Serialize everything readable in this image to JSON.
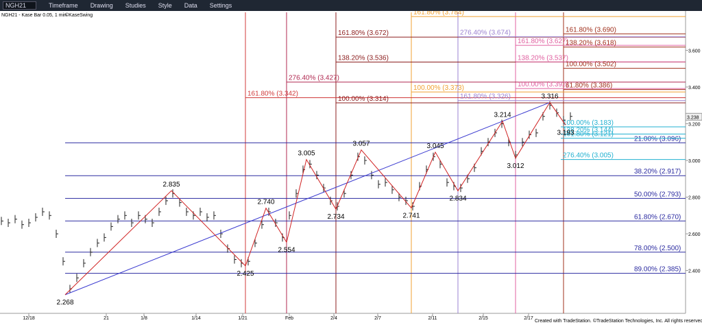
{
  "toolbar": {
    "symbol": "NGH21",
    "menus": [
      "Timeframe",
      "Drawing",
      "Studies",
      "Style",
      "Data",
      "Settings"
    ]
  },
  "chart_data": {
    "type": "price-bars",
    "title": "NGH21 - Kase Bar 0.05, 1 min",
    "study": "©KaseSwing",
    "footer": "Created with TradeStation. ©TradeStation Technologies, Inc. All rights reserved.",
    "categories": [
      "12/18",
      "21",
      "1/8",
      "1/14",
      "1/21",
      "Feb",
      "2/4",
      "2/7",
      "2/11",
      "2/15",
      "2/17"
    ],
    "ylim": [
      2.163,
      3.807
    ],
    "yticks": [
      {
        "value": 3.6,
        "label": "3.600"
      },
      {
        "value": 3.4,
        "label": "3.400"
      },
      {
        "value": 3.2,
        "label": "3.200"
      },
      {
        "value": 3,
        "label": "3.000"
      },
      {
        "value": 2.8,
        "label": "2.800"
      },
      {
        "value": 2.6,
        "label": "2.600"
      },
      {
        "value": 2.4,
        "label": "2.400"
      }
    ],
    "last_price": 3.238,
    "closes": [
      2.67,
      2.66,
      2.68,
      2.65,
      2.66,
      2.69,
      2.72,
      2.7,
      2.6,
      2.45,
      2.3,
      2.36,
      2.44,
      2.5,
      2.55,
      2.58,
      2.64,
      2.68,
      2.7,
      2.66,
      2.7,
      2.68,
      2.66,
      2.72,
      2.78,
      2.82,
      2.77,
      2.72,
      2.7,
      2.72,
      2.69,
      2.7,
      2.6,
      2.52,
      2.46,
      2.44,
      2.45,
      2.55,
      2.65,
      2.72,
      2.66,
      2.58,
      2.7,
      2.82,
      2.95,
      2.98,
      2.92,
      2.85,
      2.78,
      2.75,
      2.82,
      2.92,
      3.02,
      3.0,
      2.92,
      2.87,
      2.88,
      2.84,
      2.8,
      2.78,
      2.75,
      2.86,
      2.95,
      3.02,
      2.98,
      2.88,
      2.86,
      2.85,
      2.9,
      2.96,
      3.05,
      3.1,
      3.15,
      3.2,
      3.1,
      3.03,
      3.1,
      3.14,
      3.15,
      3.24,
      3.3,
      3.26,
      3.22,
      3.24
    ],
    "swings": [
      2.268,
      2.835,
      2.425,
      {
        "value": 2.74,
        "label": "2.740"
      },
      2.554,
      3.005,
      2.734,
      3.057,
      2.741,
      3.045,
      2.834,
      3.214,
      3.012,
      3.316,
      3.193
    ],
    "fib_sets": [
      {
        "color": "#2a2aa0",
        "levels": [
          {
            "label": "21.00% (3.096)",
            "value": 3.096
          },
          {
            "label": "38.20% (2.917)",
            "value": 2.917
          },
          {
            "label": "50.00% (2.793)",
            "value": 2.793
          },
          {
            "label": "61.80% (2.670)",
            "value": 2.67
          },
          {
            "label": "78.00% (2.500)",
            "value": 2.5
          },
          {
            "label": "89.00% (2.385)",
            "value": 2.385
          }
        ]
      },
      {
        "color": "#d03a3a",
        "levels": [
          {
            "label": "161.80% (3.342)",
            "value": 3.342
          }
        ]
      },
      {
        "color": "#b02850",
        "levels": [
          {
            "label": "276.40% (3.427)",
            "value": 3.427
          }
        ]
      },
      {
        "color": "#8b1c1c",
        "levels": [
          {
            "label": "161.80% (3.672)",
            "value": 3.672
          },
          {
            "label": "138.20% (3.536)",
            "value": 3.536
          },
          {
            "label": "100.00% (3.314)",
            "value": 3.314
          }
        ]
      },
      {
        "color": "#f0a030",
        "levels": [
          {
            "label": "161.80% (3.784)",
            "value": 3.784
          },
          {
            "label": "100.00% (3.373)",
            "value": 3.373
          }
        ]
      },
      {
        "color": "#9a80d0",
        "levels": [
          {
            "label": "276.40% (3.674)",
            "value": 3.674
          },
          {
            "label": "161.80% (3.326)",
            "value": 3.326
          }
        ]
      },
      {
        "color": "#e060a0",
        "levels": [
          {
            "label": "161.80% (3.627)",
            "value": 3.627
          },
          {
            "label": "138.20% (3.537)",
            "value": 3.537
          },
          {
            "label": "100.00% (3.392)",
            "value": 3.392
          }
        ]
      },
      {
        "color": "#a0301c",
        "levels": [
          {
            "label": "161.80% (3.690)",
            "value": 3.69
          },
          {
            "label": "138.20% (3.618)",
            "value": 3.618
          },
          {
            "label": "100.00% (3.502)",
            "value": 3.502
          },
          {
            "label": "61.80% (3.386)",
            "value": 3.386
          }
        ]
      },
      {
        "color": "#20b0d0",
        "levels": [
          {
            "label": "100.00% (3.183)",
            "value": 3.183
          },
          {
            "label": "138.20% (3.144)",
            "value": 3.144
          },
          {
            "label": "161.80% (3.121)",
            "value": 3.121
          },
          {
            "label": "276.40% (3.005)",
            "value": 3.005
          }
        ]
      }
    ]
  }
}
